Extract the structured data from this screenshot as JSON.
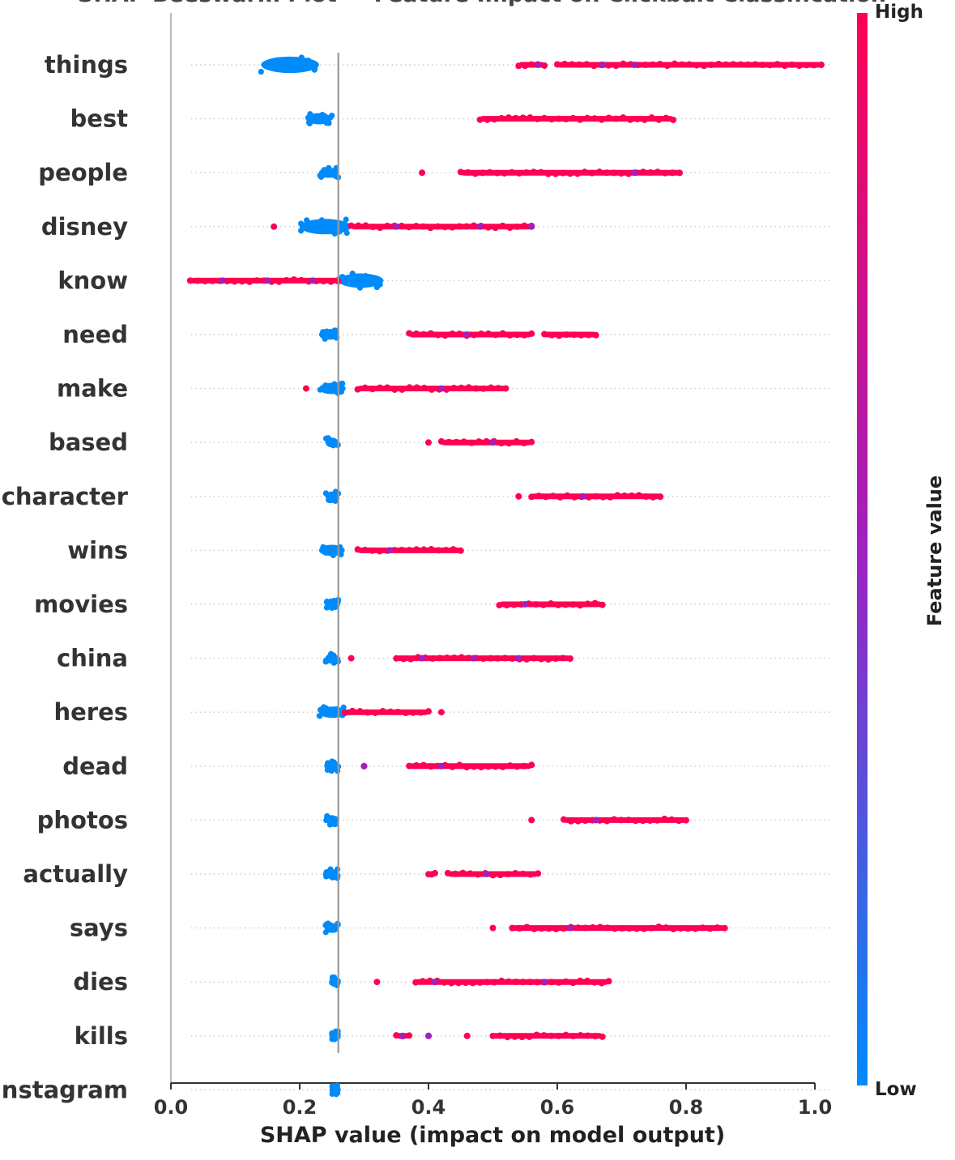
{
  "chart_data": {
    "type": "scatter",
    "subtype": "shap-beeswarm",
    "title": "SHAP Beeswarm Plot — Feature Impact on Clickbait Classification",
    "xlabel": "SHAP value (impact on model output)",
    "ylabel": "",
    "xlim": [
      0.0,
      1.0
    ],
    "xticks": [
      "0.0",
      "0.2",
      "0.4",
      "0.6",
      "0.8",
      "1.0"
    ],
    "reference_line": 0.26,
    "grid": false,
    "colorbar": {
      "title": "Feature value",
      "high_label": "High",
      "low_label": "Low",
      "high_color": "#ff0052",
      "low_color": "#008bfb",
      "mid_color": "#a020c0"
    },
    "features": [
      {
        "name": "things",
        "low_cluster": [
          0.14,
          0.23
        ],
        "high_segments": [
          [
            0.54,
            0.58
          ],
          [
            0.6,
            1.01
          ]
        ],
        "purple_points": [
          0.57,
          0.67,
          0.72
        ]
      },
      {
        "name": "best",
        "low_cluster": [
          0.21,
          0.25
        ],
        "high_segments": [
          [
            0.48,
            0.78
          ]
        ],
        "purple_points": []
      },
      {
        "name": "people",
        "low_cluster": [
          0.23,
          0.26
        ],
        "high_segments": [
          [
            0.39,
            0.39
          ],
          [
            0.45,
            0.79
          ]
        ],
        "purple_points": [
          0.72
        ]
      },
      {
        "name": "disney",
        "low_cluster": [
          0.2,
          0.28
        ],
        "high_segments": [
          [
            0.16,
            0.16
          ],
          [
            0.28,
            0.56
          ]
        ],
        "purple_points": [
          0.35,
          0.48,
          0.56
        ]
      },
      {
        "name": "know",
        "low_cluster": [
          0.26,
          0.33
        ],
        "high_segments": [
          [
            0.03,
            0.26
          ]
        ],
        "purple_points": [
          0.08,
          0.15,
          0.22
        ]
      },
      {
        "name": "need",
        "low_cluster": [
          0.23,
          0.26
        ],
        "high_segments": [
          [
            0.37,
            0.56
          ],
          [
            0.58,
            0.66
          ]
        ],
        "purple_points": [
          0.46
        ]
      },
      {
        "name": "make",
        "low_cluster": [
          0.23,
          0.27
        ],
        "high_segments": [
          [
            0.21,
            0.21
          ],
          [
            0.29,
            0.52
          ]
        ],
        "purple_points": [
          0.42
        ]
      },
      {
        "name": "based",
        "low_cluster": [
          0.24,
          0.26
        ],
        "high_segments": [
          [
            0.4,
            0.4
          ],
          [
            0.42,
            0.56
          ]
        ],
        "purple_points": [
          0.5
        ]
      },
      {
        "name": "character",
        "low_cluster": [
          0.24,
          0.26
        ],
        "high_segments": [
          [
            0.54,
            0.54
          ],
          [
            0.56,
            0.76
          ]
        ],
        "purple_points": [
          0.64
        ]
      },
      {
        "name": "wins",
        "low_cluster": [
          0.23,
          0.27
        ],
        "high_segments": [
          [
            0.29,
            0.45
          ]
        ],
        "purple_points": [
          0.34
        ]
      },
      {
        "name": "movies",
        "low_cluster": [
          0.24,
          0.26
        ],
        "high_segments": [
          [
            0.51,
            0.67
          ]
        ],
        "purple_points": [
          0.55
        ]
      },
      {
        "name": "china",
        "low_cluster": [
          0.24,
          0.26
        ],
        "high_segments": [
          [
            0.28,
            0.28
          ],
          [
            0.35,
            0.62
          ]
        ],
        "purple_points": [
          0.39,
          0.47,
          0.54
        ]
      },
      {
        "name": "heres",
        "low_cluster": [
          0.23,
          0.27
        ],
        "high_segments": [
          [
            0.27,
            0.4
          ],
          [
            0.42,
            0.42
          ]
        ],
        "purple_points": []
      },
      {
        "name": "dead",
        "low_cluster": [
          0.24,
          0.26
        ],
        "high_segments": [
          [
            0.3,
            0.3
          ],
          [
            0.37,
            0.56
          ]
        ],
        "purple_points": [
          0.3,
          0.42
        ]
      },
      {
        "name": "photos",
        "low_cluster": [
          0.24,
          0.26
        ],
        "high_segments": [
          [
            0.56,
            0.56
          ],
          [
            0.61,
            0.8
          ]
        ],
        "purple_points": [
          0.66
        ]
      },
      {
        "name": "actually",
        "low_cluster": [
          0.24,
          0.26
        ],
        "high_segments": [
          [
            0.4,
            0.41
          ],
          [
            0.43,
            0.57
          ]
        ],
        "purple_points": [
          0.49
        ]
      },
      {
        "name": "says",
        "low_cluster": [
          0.24,
          0.26
        ],
        "high_segments": [
          [
            0.5,
            0.5
          ],
          [
            0.53,
            0.86
          ]
        ],
        "purple_points": [
          0.62
        ]
      },
      {
        "name": "dies",
        "low_cluster": [
          0.25,
          0.26
        ],
        "high_segments": [
          [
            0.32,
            0.32
          ],
          [
            0.38,
            0.68
          ]
        ],
        "purple_points": [
          0.41,
          0.58
        ]
      },
      {
        "name": "kills",
        "low_cluster": [
          0.25,
          0.26
        ],
        "high_segments": [
          [
            0.35,
            0.37
          ],
          [
            0.4,
            0.4
          ],
          [
            0.46,
            0.46
          ],
          [
            0.5,
            0.67
          ]
        ],
        "purple_points": [
          0.36,
          0.4
        ]
      },
      {
        "name": "instagram",
        "low_cluster": [
          0.25,
          0.26
        ],
        "high_segments": [],
        "purple_points": []
      }
    ]
  }
}
